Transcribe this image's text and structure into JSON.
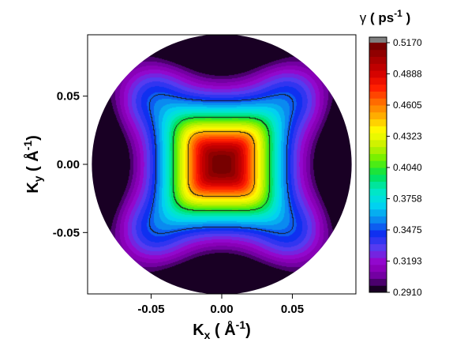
{
  "chart_data": {
    "type": "heatmap",
    "subtype": "filled-contour-polar",
    "title": "",
    "xlabel": {
      "main": "K",
      "sub": "x",
      "rest": " ( Å",
      "sup": "-1",
      "close": ")"
    },
    "ylabel": {
      "main": "K",
      "sub": "y",
      "rest": " ( Å",
      "sup": "-1",
      "close": ")"
    },
    "xlim": [
      -0.095,
      0.095
    ],
    "ylim": [
      -0.095,
      0.095
    ],
    "x_ticks": [
      {
        "value": -0.05,
        "label": "-0.05"
      },
      {
        "value": 0.0,
        "label": "0.00"
      },
      {
        "value": 0.05,
        "label": "0.05"
      }
    ],
    "y_ticks": [
      {
        "value": 0.05,
        "label": "0.05"
      },
      {
        "value": 0.0,
        "label": "0.00"
      },
      {
        "value": -0.05,
        "label": "-0.05"
      }
    ],
    "domain_radius": 0.092,
    "colorbar": {
      "title": {
        "symbol": "γ",
        "rest": " ( ps",
        "sup": "-1",
        "close": " )"
      },
      "min": 0.291,
      "max": 0.517,
      "levels": 36,
      "ticks": [
        {
          "value": 0.517,
          "label": "0.5170"
        },
        {
          "value": 0.4888,
          "label": "0.4888"
        },
        {
          "value": 0.4605,
          "label": "0.4605"
        },
        {
          "value": 0.4323,
          "label": "0.4323"
        },
        {
          "value": 0.404,
          "label": "0.4040"
        },
        {
          "value": 0.3758,
          "label": "0.3758"
        },
        {
          "value": 0.3475,
          "label": "0.3475"
        },
        {
          "value": 0.3193,
          "label": "0.3193"
        },
        {
          "value": 0.291,
          "label": "0.2910"
        }
      ],
      "colors": [
        "#000000",
        "#6a009a",
        "#9a00c8",
        "#5a3cf0",
        "#0f2ff0",
        "#0a8ef0",
        "#00d8f0",
        "#00e8c0",
        "#00e050",
        "#66f000",
        "#c8f000",
        "#ffff00",
        "#ffb000",
        "#ff6a00",
        "#ff1a00",
        "#d00000",
        "#a00000",
        "#6a0000"
      ],
      "over_color": "#808080"
    },
    "field": {
      "peak": 0.517,
      "base": 0.291,
      "center_width": 0.04,
      "square_exponent": 5,
      "axis_dip_radius": 0.092,
      "axis_dip_width": 0.022
    },
    "contour_line_levels": [
      0.35,
      0.4,
      0.45
    ]
  }
}
